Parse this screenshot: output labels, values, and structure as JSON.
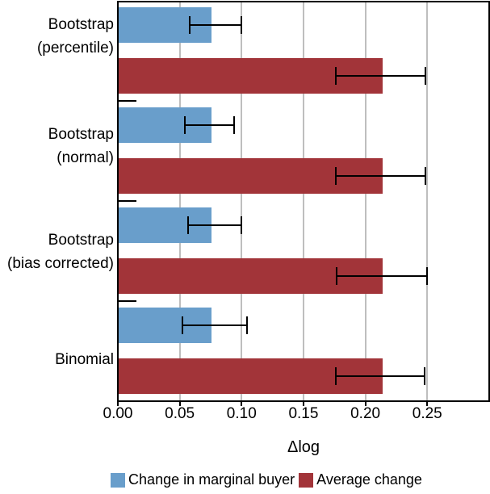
{
  "chart_data": {
    "type": "bar",
    "orientation": "horizontal",
    "title": "",
    "xlabel": "Δlog",
    "ylabel": "",
    "categories": [
      "Bootstrap (percentile)",
      "Bootstrap (normal)",
      "Bootstrap (bias corrected)",
      "Binomial"
    ],
    "category_label_lines": [
      [
        "Bootstrap",
        "(percentile)"
      ],
      [
        "Bootstrap",
        "(normal)"
      ],
      [
        "Bootstrap",
        "(bias corrected)"
      ],
      [
        "Binomial"
      ]
    ],
    "series": [
      {
        "name": "Change in marginal buyer",
        "color": "#699ECB",
        "values": [
          0.075,
          0.075,
          0.075,
          0.075
        ],
        "error_low": [
          0.058,
          0.054,
          0.057,
          0.052
        ],
        "error_high": [
          0.101,
          0.095,
          0.101,
          0.106
        ]
      },
      {
        "name": "Average change",
        "color": "#A23439",
        "values": [
          0.213,
          0.213,
          0.213,
          0.213
        ],
        "error_low": [
          0.176,
          0.176,
          0.177,
          0.176
        ],
        "error_high": [
          0.25,
          0.25,
          0.251,
          0.249
        ]
      }
    ],
    "xlim": [
      0,
      0.3
    ],
    "xticks": [
      0,
      0.05,
      0.1,
      0.15,
      0.2,
      0.25
    ],
    "xtick_labels": [
      "0.00",
      "0.05",
      "0.10",
      "0.15",
      "0.20",
      "0.25"
    ],
    "grid": {
      "vertical": true,
      "color": "#BEBEBE"
    },
    "legend_position": "bottom",
    "colors": {
      "axis": "#000000",
      "background": "#FFFFFF",
      "error_bar": "#000000"
    }
  }
}
